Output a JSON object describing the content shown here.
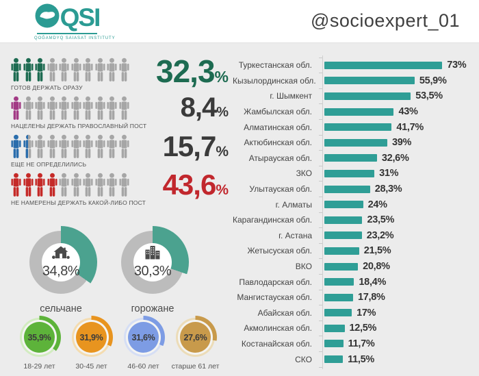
{
  "header": {
    "logo_text": "QSI",
    "logo_subtext": "QOĞAMDYQ SAIASAT INSTITUTY",
    "handle": "@socioexpert_01"
  },
  "colors": {
    "brand_teal": "#2b9b93",
    "bar_teal": "#2f9e96",
    "donut_teal": "#4ba28f",
    "donut_gray": "#bcbcbc",
    "icon_gray": "#a6a6a6",
    "background": "#ececec"
  },
  "chart_data": [
    {
      "id": "regions",
      "type": "bar",
      "orientation": "horizontal",
      "title": "",
      "xlabel": "",
      "ylabel": "",
      "xlim": [
        0,
        80
      ],
      "grid": false,
      "bar_color": "#2f9e96",
      "categories": [
        "Туркестанская обл.",
        "Кызылординская обл.",
        "г. Шымкент",
        "Жамбылская обл.",
        "Алматинская обл.",
        "Актюбинская обл.",
        "Атырауская обл.",
        "ЗКО",
        "Улытауская обл.",
        "г. Алматы",
        "Карагандинская обл.",
        "г. Астана",
        "Жетысуская обл.",
        "ВКО",
        "Павлодарская обл.",
        "Мангистауская обл.",
        "Абайская обл.",
        "Акмолинская обл.",
        "Костанайская обл.",
        "СКО"
      ],
      "values": [
        73,
        55.9,
        53.5,
        43,
        41.7,
        39,
        32.6,
        31,
        28.3,
        24,
        23.5,
        23.2,
        21.5,
        20.8,
        18.4,
        17.8,
        17,
        12.5,
        11.7,
        11.5
      ],
      "value_labels": [
        "73%",
        "55,9%",
        "53,5%",
        "43%",
        "41,7%",
        "39%",
        "32,6%",
        "31%",
        "28,3%",
        "24%",
        "23,5%",
        "23,2%",
        "21,5%",
        "20,8%",
        "18,4%",
        "17,8%",
        "17%",
        "12,5%",
        "11,7%",
        "11,5%"
      ]
    },
    {
      "id": "residence",
      "type": "pie",
      "ring_color": "#bcbcbc",
      "arc_color": "#4ba28f",
      "items": [
        {
          "label": "сельчане",
          "value": 34.8,
          "value_label": "34,8%",
          "icon": "house-icon"
        },
        {
          "label": "горожане",
          "value": 30.3,
          "value_label": "30,3%",
          "icon": "city-icon"
        }
      ]
    },
    {
      "id": "age_groups",
      "type": "pie",
      "items": [
        {
          "label": "18-29 лет",
          "value": 35.9,
          "value_label": "35,9%",
          "color": "#5db33a",
          "tint": "#d2ecc0"
        },
        {
          "label": "30-45 лет",
          "value": 31.9,
          "value_label": "31,9%",
          "color": "#e8941f",
          "tint": "#f4dcb0"
        },
        {
          "label": "46-60 лет",
          "value": 31.6,
          "value_label": "31,6%",
          "color": "#7d9ce4",
          "tint": "#d5def5"
        },
        {
          "label": "старше 61 лет",
          "value": 27.6,
          "value_label": "27,6%",
          "color": "#c89a4b",
          "tint": "#ecdcb8"
        }
      ]
    },
    {
      "id": "fasting_intent",
      "type": "pictogram",
      "total_icons": 10,
      "items": [
        {
          "label": "ГОТОВ ДЕРЖАТЬ ОРАЗУ",
          "value": 32.3,
          "value_text": "32,3",
          "unit": "%",
          "filled": 3,
          "icon_color": "#1d6b51",
          "value_color": "#1d6b51",
          "value_size": 46
        },
        {
          "label": "НАЦЕЛЕНЫ ДЕРЖАТЬ ПРАВОСЛАВНЫЙ ПОСТ",
          "value": 8.4,
          "value_text": "8,4",
          "unit": "%",
          "filled": 1,
          "icon_color": "#a23a85",
          "value_color": "#3a3a3a",
          "value_size": 40
        },
        {
          "label": "ЕЩЕ НЕ ОПРЕДЕЛИЛИСЬ",
          "value": 15.7,
          "value_text": "15,7",
          "unit": "%",
          "filled": 1.5,
          "icon_color": "#2a6dac",
          "value_color": "#3a3a3a",
          "value_size": 42
        },
        {
          "label": "НЕ НАМЕРЕНЫ ДЕРЖАТЬ КАКОЙ-ЛИБО ПОСТ",
          "value": 43.6,
          "value_text": "43,6",
          "unit": "%",
          "filled": 4,
          "icon_color": "#c52a28",
          "value_color": "#c1272d",
          "value_size": 42
        }
      ]
    }
  ]
}
